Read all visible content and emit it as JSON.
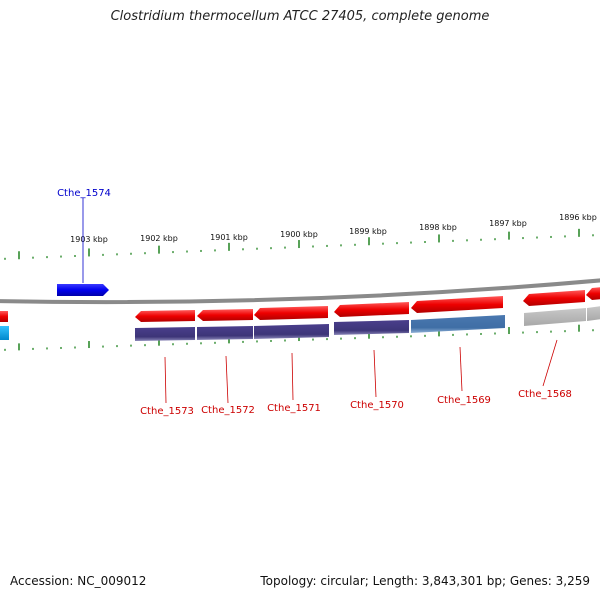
{
  "header": {
    "title": "Clostridium thermocellum ATCC 27405, complete genome"
  },
  "ruler": {
    "tick_labels": [
      "1903 kbp",
      "1902 kbp",
      "1901 kbp",
      "1900 kbp",
      "1899 kbp",
      "1898 kbp",
      "1897 kbp",
      "1896 kbp"
    ],
    "tick_color": "#2e8b2e"
  },
  "backbone": {
    "color": "#8a8a8a"
  },
  "genes": {
    "forward": [
      {
        "name": "Cthe_1574",
        "color": "#0000ee"
      }
    ],
    "reverse": [
      {
        "name": "Cthe_1573",
        "color": "#ee0000"
      },
      {
        "name": "Cthe_1572",
        "color": "#ee0000"
      },
      {
        "name": "Cthe_1571",
        "color": "#ee0000"
      },
      {
        "name": "Cthe_1570",
        "color": "#ee0000"
      },
      {
        "name": "Cthe_1569",
        "color": "#ee0000"
      },
      {
        "name": "Cthe_1568",
        "color": "#ee0000"
      }
    ],
    "label_colors": {
      "forward": "#0000cc",
      "reverse": "#cc0000"
    }
  },
  "footer": {
    "accession": "Accession: NC_009012",
    "summary": "Topology: circular; Length: 3,843,301 bp; Genes: 3,259"
  }
}
